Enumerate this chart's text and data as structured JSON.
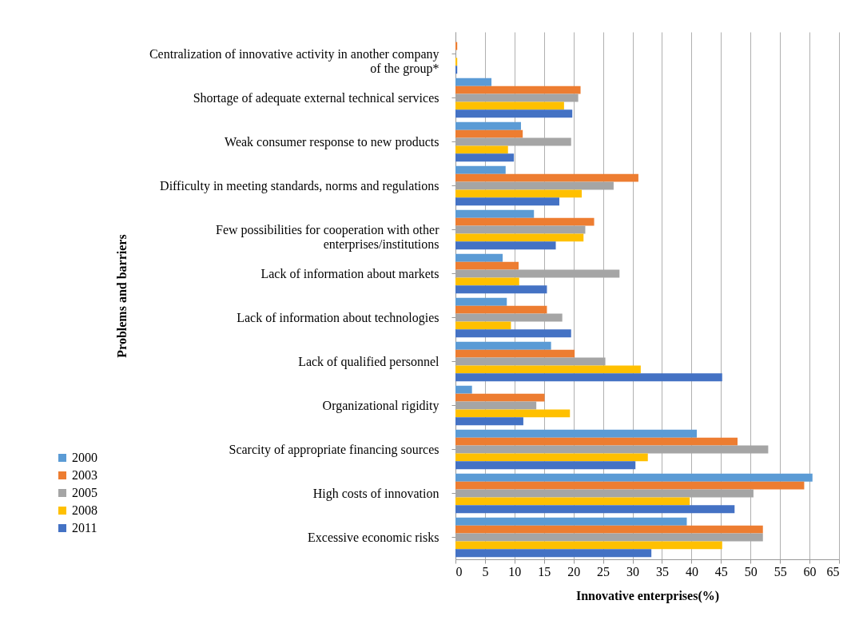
{
  "chart_data": {
    "type": "bar",
    "orientation": "horizontal",
    "xlabel": "Innovative enterprises(%)",
    "ylabel": "Problems and barriers",
    "categories": [
      "Centralization of innovative activity in another company of the group*",
      "Shortage of adequate external technical services",
      "Weak consumer response to new products",
      "Difficulty in meeting standards, norms and regulations",
      "Few possibilities for cooperation with other enterprises/institutions",
      "Lack of information about markets",
      "Lack of information about technologies",
      "Lack of qualified personnel",
      "Organizational rigidity",
      "Scarcity of appropriate financing sources",
      "High costs of innovation",
      "Excessive economic risks"
    ],
    "series": [
      {
        "name": "2000",
        "color": "#5b9bd5",
        "values": [
          0,
          6.1,
          11.1,
          8.5,
          13.3,
          8.0,
          8.7,
          16.2,
          2.8,
          40.9,
          60.5,
          39.2
        ]
      },
      {
        "name": "2003",
        "color": "#ed7d31",
        "values": [
          0.3,
          21.2,
          11.4,
          31.0,
          23.5,
          10.7,
          15.5,
          20.2,
          15.1,
          47.8,
          59.1,
          52.1
        ]
      },
      {
        "name": "2005",
        "color": "#a5a5a5",
        "values": [
          0,
          20.8,
          19.6,
          26.8,
          22.0,
          27.8,
          18.1,
          25.4,
          13.7,
          53.0,
          50.5,
          52.1
        ]
      },
      {
        "name": "2008",
        "color": "#ffc000",
        "values": [
          0.3,
          18.4,
          8.9,
          21.4,
          21.7,
          10.8,
          9.4,
          31.4,
          19.4,
          32.6,
          39.7,
          45.2
        ]
      },
      {
        "name": "2011",
        "color": "#4472c4",
        "values": [
          0.3,
          19.8,
          9.9,
          17.6,
          17.0,
          15.5,
          19.6,
          45.2,
          11.5,
          30.5,
          47.3,
          33.2
        ]
      }
    ],
    "xlim": [
      0,
      65
    ],
    "xticks": [
      0,
      5,
      10,
      15,
      20,
      25,
      30,
      35,
      40,
      45,
      50,
      55,
      60,
      65
    ],
    "grid": "x",
    "legend": "bottom left"
  }
}
